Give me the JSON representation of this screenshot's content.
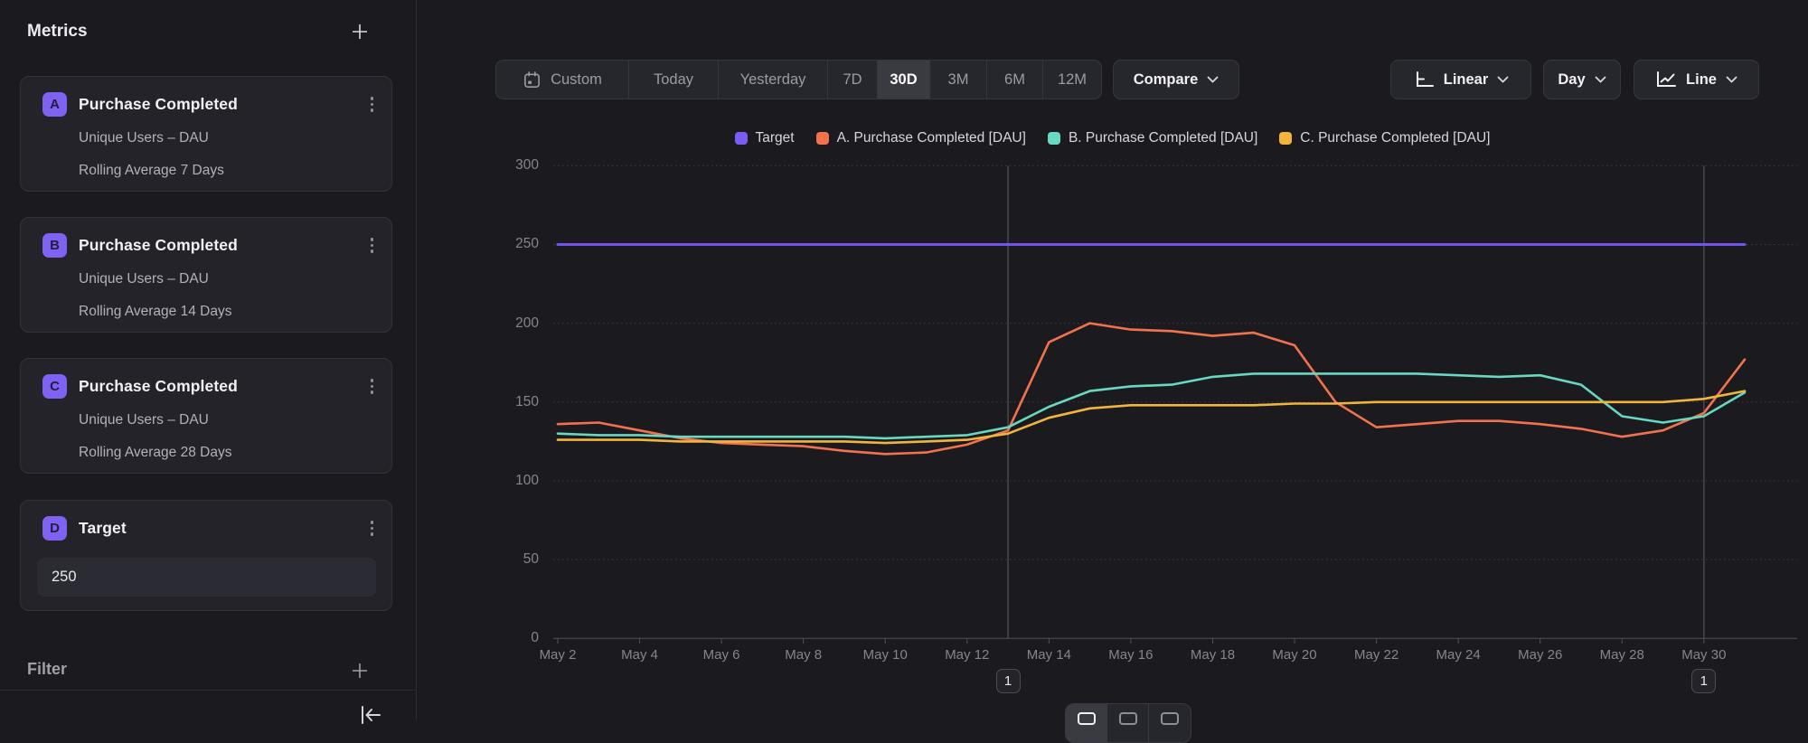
{
  "sidebar": {
    "title": "Metrics",
    "metrics": [
      {
        "letter": "A",
        "title": "Purchase Completed",
        "measure": "Unique Users – DAU",
        "transform": "Rolling Average 7 Days"
      },
      {
        "letter": "B",
        "title": "Purchase Completed",
        "measure": "Unique Users – DAU",
        "transform": "Rolling Average 14 Days"
      },
      {
        "letter": "C",
        "title": "Purchase Completed",
        "measure": "Unique Users – DAU",
        "transform": "Rolling Average 28 Days"
      }
    ],
    "target": {
      "letter": "D",
      "title": "Target",
      "value": "250"
    },
    "filter_label": "Filter"
  },
  "toolbar": {
    "ranges": [
      {
        "label": "Custom",
        "has_calendar_icon": true,
        "active": false
      },
      {
        "label": "Today",
        "active": false
      },
      {
        "label": "Yesterday",
        "active": false
      },
      {
        "label": "7D",
        "active": false
      },
      {
        "label": "30D",
        "active": true
      },
      {
        "label": "3M",
        "active": false
      },
      {
        "label": "6M",
        "active": false
      },
      {
        "label": "12M",
        "active": false
      }
    ],
    "compare_label": "Compare",
    "scale_label": "Linear",
    "granularity_label": "Day",
    "chart_type_label": "Line"
  },
  "chart_data": {
    "type": "line",
    "title": "",
    "xlabel": "",
    "ylabel": "",
    "ylim": [
      0,
      300
    ],
    "yticks": [
      0,
      50,
      100,
      150,
      200,
      250,
      300
    ],
    "grid": true,
    "legend_position": "top",
    "dates": [
      "May 2",
      "May 3",
      "May 4",
      "May 5",
      "May 6",
      "May 7",
      "May 8",
      "May 9",
      "May 10",
      "May 11",
      "May 12",
      "May 13",
      "May 14",
      "May 15",
      "May 16",
      "May 17",
      "May 18",
      "May 19",
      "May 20",
      "May 21",
      "May 22",
      "May 23",
      "May 24",
      "May 25",
      "May 26",
      "May 27",
      "May 28",
      "May 29",
      "May 30",
      "May 31"
    ],
    "x_tick_labels": [
      "May 2",
      "May 4",
      "May 6",
      "May 8",
      "May 10",
      "May 12",
      "May 14",
      "May 16",
      "May 18",
      "May 20",
      "May 22",
      "May 24",
      "May 26",
      "May 28",
      "May 30"
    ],
    "legend": [
      {
        "name": "Target",
        "color": "#7a5cf4"
      },
      {
        "name": "A. Purchase Completed [DAU]",
        "color": "#f3724e"
      },
      {
        "name": "B. Purchase Completed [DAU]",
        "color": "#68d8c2"
      },
      {
        "name": "C. Purchase Completed [DAU]",
        "color": "#f1b53f"
      }
    ],
    "series": [
      {
        "name": "Target",
        "color": "#7253ee",
        "constant": 250
      },
      {
        "name": "A. Purchase Completed [DAU]",
        "color": "#f3724e",
        "values": [
          136,
          137,
          132,
          127,
          124,
          123,
          122,
          119,
          117,
          118,
          123,
          132,
          188,
          200,
          196,
          195,
          192,
          194,
          186,
          150,
          134,
          136,
          138,
          138,
          136,
          133,
          128,
          132,
          143,
          177
        ]
      },
      {
        "name": "B. Purchase Completed [DAU]",
        "color": "#68d8c2",
        "values": [
          130,
          129,
          129,
          128,
          128,
          128,
          128,
          128,
          127,
          128,
          129,
          134,
          147,
          157,
          160,
          161,
          166,
          168,
          168,
          168,
          168,
          168,
          167,
          166,
          167,
          161,
          141,
          137,
          141,
          156
        ]
      },
      {
        "name": "C. Purchase Completed [DAU]",
        "color": "#f1b53f",
        "values": [
          126,
          126,
          126,
          125,
          125,
          125,
          125,
          125,
          124,
          125,
          126,
          130,
          140,
          146,
          148,
          148,
          148,
          148,
          149,
          149,
          150,
          150,
          150,
          150,
          150,
          150,
          150,
          150,
          152,
          157
        ]
      }
    ],
    "annotations": [
      {
        "date": "May 13",
        "day_index": 11,
        "label": "1"
      },
      {
        "date": "May 30",
        "day_index": 28,
        "label": "1"
      }
    ]
  }
}
